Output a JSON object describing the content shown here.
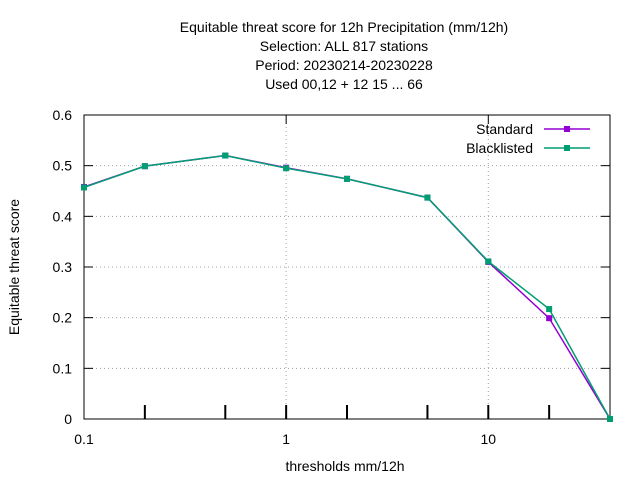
{
  "chart_data": {
    "type": "line",
    "title_lines": [
      "Equitable threat score  for 12h Precipitation (mm/12h)",
      "Selection: ALL    817 stations",
      "Period: 20230214-20230228",
      "Used  00,12  + 12 15 ... 66"
    ],
    "xlabel": "thresholds mm/12h",
    "ylabel": "Equitable threat score",
    "xscale": "log",
    "xlim": [
      0.1,
      40
    ],
    "ylim": [
      0,
      0.6
    ],
    "xticks": [
      {
        "value": 0.1,
        "label": "0.1"
      },
      {
        "value": 1,
        "label": "1"
      },
      {
        "value": 10,
        "label": "10"
      }
    ],
    "yticks": [
      {
        "value": 0,
        "label": "0"
      },
      {
        "value": 0.1,
        "label": "0.1"
      },
      {
        "value": 0.2,
        "label": "0.2"
      },
      {
        "value": 0.3,
        "label": "0.3"
      },
      {
        "value": 0.4,
        "label": "0.4"
      },
      {
        "value": 0.5,
        "label": "0.5"
      },
      {
        "value": 0.6,
        "label": "0.6"
      }
    ],
    "grid": true,
    "legend_position": "top-right",
    "x": [
      0.1,
      0.2,
      0.5,
      1,
      2,
      5,
      10,
      20,
      40
    ],
    "series": [
      {
        "name": "Standard",
        "color": "#9400d3",
        "values": [
          0.458,
          0.499,
          0.52,
          0.496,
          0.474,
          0.437,
          0.31,
          0.199,
          0.0
        ]
      },
      {
        "name": "Blacklisted",
        "color": "#009e73",
        "values": [
          0.457,
          0.499,
          0.52,
          0.495,
          0.474,
          0.437,
          0.311,
          0.217,
          0.0
        ]
      }
    ]
  }
}
